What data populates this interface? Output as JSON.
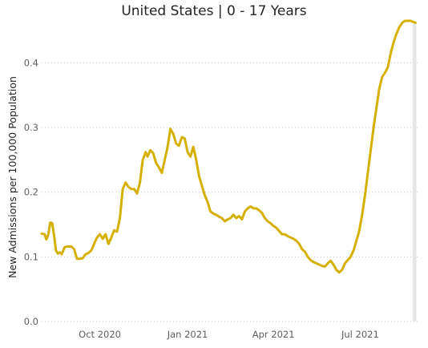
{
  "chart_data": {
    "type": "line",
    "title": "United States | 0 - 17 Years",
    "xlabel": "",
    "ylabel": "New Admissions per 100,000 Population",
    "ylim": [
      0,
      0.46
    ],
    "yticks": [
      0.0,
      0.1,
      0.2,
      0.3,
      0.4
    ],
    "ytick_labels": [
      "0.0",
      "0.1",
      "0.2",
      "0.3",
      "0.4"
    ],
    "xlim": [
      "2020-08-01",
      "2021-08-31"
    ],
    "xticks": [
      "2020-10-01",
      "2021-01-01",
      "2021-04-01",
      "2021-07-01"
    ],
    "xtick_labels": [
      "Oct 2020",
      "Jan 2021",
      "Apr 2021",
      "Jul 2021"
    ],
    "grid": "horizontal",
    "line_color": "#D4B000",
    "highlight_band_color": "#E6E6E6",
    "highlight_band_x": [
      "2021-08-25",
      "2021-08-29"
    ],
    "series": [
      {
        "x": [
          "2020-08-01",
          "2020-08-04",
          "2020-08-06",
          "2020-08-08",
          "2020-08-10",
          "2020-08-12",
          "2020-08-14",
          "2020-08-16",
          "2020-08-18",
          "2020-08-20",
          "2020-08-22",
          "2020-08-25",
          "2020-08-28",
          "2020-09-01",
          "2020-09-04",
          "2020-09-07",
          "2020-09-10",
          "2020-09-13",
          "2020-09-16",
          "2020-09-19",
          "2020-09-22",
          "2020-09-25",
          "2020-09-28",
          "2020-10-01",
          "2020-10-04",
          "2020-10-07",
          "2020-10-10",
          "2020-10-13",
          "2020-10-16",
          "2020-10-19",
          "2020-10-22",
          "2020-10-25",
          "2020-10-28",
          "2020-10-31",
          "2020-11-03",
          "2020-11-06",
          "2020-11-09",
          "2020-11-12",
          "2020-11-15",
          "2020-11-18",
          "2020-11-20",
          "2020-11-23",
          "2020-11-26",
          "2020-11-29",
          "2020-12-02",
          "2020-12-05",
          "2020-12-08",
          "2020-12-11",
          "2020-12-14",
          "2020-12-17",
          "2020-12-20",
          "2020-12-23",
          "2020-12-26",
          "2020-12-29",
          "2021-01-01",
          "2021-01-04",
          "2021-01-07",
          "2021-01-10",
          "2021-01-13",
          "2021-01-16",
          "2021-01-19",
          "2021-01-22",
          "2021-01-25",
          "2021-01-28",
          "2021-01-31",
          "2021-02-03",
          "2021-02-06",
          "2021-02-09",
          "2021-02-12",
          "2021-02-15",
          "2021-02-18",
          "2021-02-21",
          "2021-02-24",
          "2021-02-27",
          "2021-03-02",
          "2021-03-05",
          "2021-03-08",
          "2021-03-11",
          "2021-03-14",
          "2021-03-17",
          "2021-03-20",
          "2021-03-23",
          "2021-03-26",
          "2021-03-29",
          "2021-04-01",
          "2021-04-04",
          "2021-04-07",
          "2021-04-10",
          "2021-04-13",
          "2021-04-16",
          "2021-04-19",
          "2021-04-22",
          "2021-04-25",
          "2021-04-28",
          "2021-05-01",
          "2021-05-04",
          "2021-05-07",
          "2021-05-10",
          "2021-05-13",
          "2021-05-16",
          "2021-05-19",
          "2021-05-22",
          "2021-05-25",
          "2021-05-28",
          "2021-05-31",
          "2021-06-03",
          "2021-06-06",
          "2021-06-09",
          "2021-06-12",
          "2021-06-15",
          "2021-06-18",
          "2021-06-21",
          "2021-06-24",
          "2021-06-27",
          "2021-06-30",
          "2021-07-03",
          "2021-07-06",
          "2021-07-09",
          "2021-07-12",
          "2021-07-15",
          "2021-07-18",
          "2021-07-21",
          "2021-07-24",
          "2021-07-27",
          "2021-07-30",
          "2021-08-02",
          "2021-08-05",
          "2021-08-08",
          "2021-08-11",
          "2021-08-14",
          "2021-08-17",
          "2021-08-20",
          "2021-08-23",
          "2021-08-26",
          "2021-08-28"
        ],
        "values": [
          0.136,
          0.135,
          0.127,
          0.135,
          0.153,
          0.152,
          0.133,
          0.11,
          0.105,
          0.107,
          0.104,
          0.115,
          0.116,
          0.116,
          0.112,
          0.097,
          0.097,
          0.098,
          0.104,
          0.106,
          0.11,
          0.12,
          0.13,
          0.135,
          0.128,
          0.135,
          0.12,
          0.13,
          0.141,
          0.139,
          0.16,
          0.205,
          0.215,
          0.208,
          0.205,
          0.205,
          0.198,
          0.215,
          0.25,
          0.262,
          0.255,
          0.265,
          0.26,
          0.245,
          0.238,
          0.23,
          0.25,
          0.27,
          0.298,
          0.29,
          0.275,
          0.272,
          0.285,
          0.283,
          0.262,
          0.255,
          0.27,
          0.25,
          0.225,
          0.21,
          0.195,
          0.185,
          0.17,
          0.167,
          0.165,
          0.162,
          0.16,
          0.155,
          0.158,
          0.16,
          0.165,
          0.16,
          0.163,
          0.158,
          0.17,
          0.175,
          0.178,
          0.175,
          0.175,
          0.172,
          0.168,
          0.16,
          0.155,
          0.152,
          0.148,
          0.145,
          0.14,
          0.135,
          0.135,
          0.132,
          0.13,
          0.128,
          0.125,
          0.12,
          0.112,
          0.108,
          0.1,
          0.095,
          0.092,
          0.09,
          0.088,
          0.086,
          0.085,
          0.09,
          0.094,
          0.088,
          0.08,
          0.076,
          0.08,
          0.09,
          0.095,
          0.1,
          0.11,
          0.125,
          0.14,
          0.165,
          0.195,
          0.23,
          0.265,
          0.3,
          0.33,
          0.36,
          0.378,
          0.385,
          0.393,
          0.415,
          0.432,
          0.445,
          0.455,
          0.462,
          0.465,
          0.465,
          0.465,
          0.463,
          0.462
        ]
      }
    ]
  }
}
